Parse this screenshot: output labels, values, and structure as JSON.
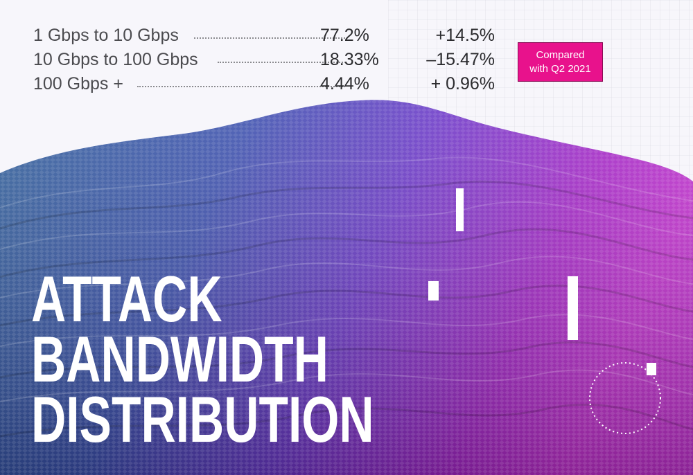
{
  "stats": [
    {
      "range": "1 Gbps to 10 Gbps",
      "share": "77.2%",
      "change": "+14.5%"
    },
    {
      "range": "10 Gbps to 100 Gbps",
      "share": "18.33%",
      "change": "–15.47%"
    },
    {
      "range": "100 Gbps +",
      "share": "4.44%",
      "change": "+ 0.96%"
    }
  ],
  "badge": {
    "text": "Compared\nwith Q2 2021",
    "color": "#e8128c"
  },
  "title": {
    "line1": "ATTACK",
    "line2": "BANDWIDTH",
    "line3": "DISTRIBUTION"
  },
  "palette": {
    "wave_left": "#2f5f9e",
    "wave_mid": "#5a3fc8",
    "wave_right": "#b023c9",
    "accent": "#e8128c"
  }
}
